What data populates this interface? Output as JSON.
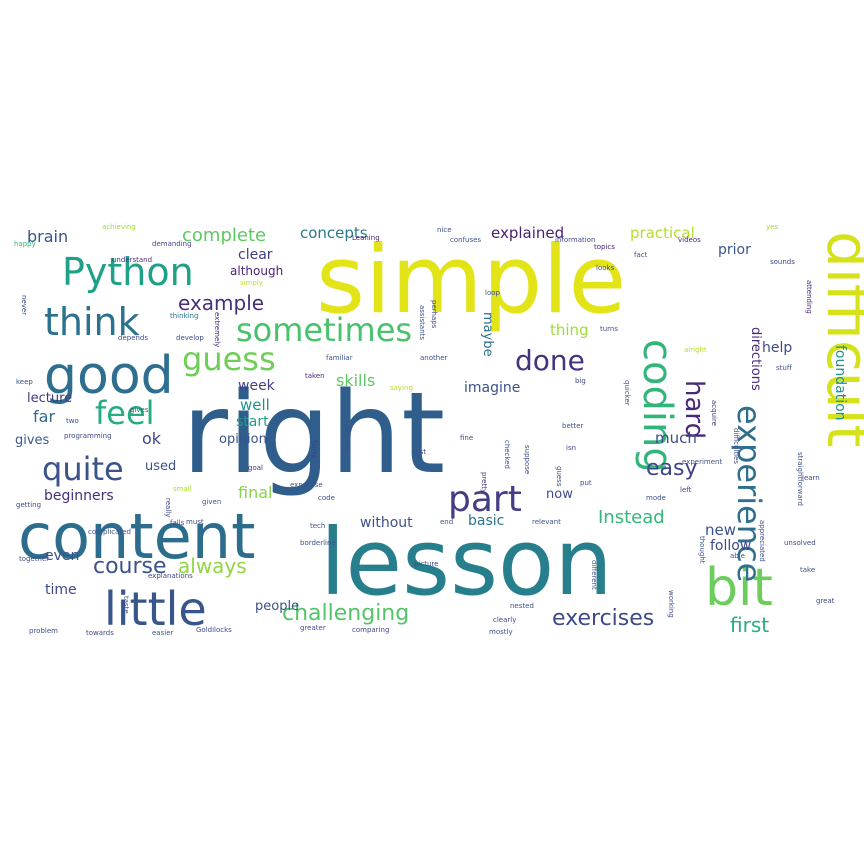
{
  "words": [
    {
      "text": "right",
      "color": "#2f5e8d"
    },
    {
      "text": "simple",
      "color": "#e2e418"
    },
    {
      "text": "lesson",
      "color": "#277f8e"
    },
    {
      "text": "content",
      "color": "#2c6d8e"
    },
    {
      "text": "difficult",
      "color": "#d5e21a"
    },
    {
      "text": "good",
      "color": "#2e6e8e"
    },
    {
      "text": "bit",
      "color": "#6ccd5a"
    },
    {
      "text": "little",
      "color": "#39568c"
    },
    {
      "text": "coding",
      "color": "#31b57b"
    },
    {
      "text": "part",
      "color": "#433e85"
    },
    {
      "text": "Python",
      "color": "#1fa187"
    },
    {
      "text": "think",
      "color": "#2c728e"
    },
    {
      "text": "quite",
      "color": "#3b528b"
    },
    {
      "text": "experience",
      "color": "#2e6f8e"
    },
    {
      "text": "sometimes",
      "color": "#4ac16d"
    },
    {
      "text": "challenging",
      "color": "#52c569"
    },
    {
      "text": "exercises",
      "color": "#3e4a89"
    },
    {
      "text": "guess",
      "color": "#6ece58"
    },
    {
      "text": "feel",
      "color": "#25ac82"
    },
    {
      "text": "done",
      "color": "#46327e"
    },
    {
      "text": "hard",
      "color": "#482878"
    },
    {
      "text": "course",
      "color": "#3b528b"
    },
    {
      "text": "always",
      "color": "#90d743"
    },
    {
      "text": "first",
      "color": "#26ad81"
    },
    {
      "text": "easy",
      "color": "#414487"
    },
    {
      "text": "example",
      "color": "#472d7b"
    },
    {
      "text": "Instead",
      "color": "#35b779"
    },
    {
      "text": "complete",
      "color": "#5ec962"
    },
    {
      "text": "brain",
      "color": "#3b528b"
    },
    {
      "text": "concepts",
      "color": "#2a788e"
    },
    {
      "text": "explained",
      "color": "#482173"
    },
    {
      "text": "practical",
      "color": "#b5de2b"
    },
    {
      "text": "clear",
      "color": "#433e85"
    },
    {
      "text": "although",
      "color": "#482475"
    },
    {
      "text": "prior",
      "color": "#39568c"
    },
    {
      "text": "skills",
      "color": "#5ec962"
    },
    {
      "text": "final",
      "color": "#84d44b"
    },
    {
      "text": "foundation",
      "color": "#21918c"
    },
    {
      "text": "directions",
      "color": "#482878"
    },
    {
      "text": "help",
      "color": "#3e4a89"
    },
    {
      "text": "thing",
      "color": "#a0da39"
    },
    {
      "text": "maybe",
      "color": "#2d708e"
    },
    {
      "text": "imagine",
      "color": "#3b528b"
    },
    {
      "text": "week",
      "color": "#433e85"
    },
    {
      "text": "well",
      "color": "#20928c"
    },
    {
      "text": "start",
      "color": "#1f9e89"
    },
    {
      "text": "opinion",
      "color": "#3b528b"
    },
    {
      "text": "much",
      "color": "#3e4a89"
    },
    {
      "text": "ok",
      "color": "#414487"
    },
    {
      "text": "lecture",
      "color": "#443983"
    },
    {
      "text": "far",
      "color": "#31688e"
    },
    {
      "text": "gives",
      "color": "#38598c"
    },
    {
      "text": "used",
      "color": "#3b528b"
    },
    {
      "text": "beginners",
      "color": "#472d7b"
    },
    {
      "text": "basic",
      "color": "#2c728e"
    },
    {
      "text": "without",
      "color": "#3b528b"
    },
    {
      "text": "now",
      "color": "#3e4a89"
    },
    {
      "text": "new",
      "color": "#3b528b"
    },
    {
      "text": "follow",
      "color": "#3e4a89"
    },
    {
      "text": "even",
      "color": "#3b528b"
    },
    {
      "text": "time",
      "color": "#3e4a89"
    },
    {
      "text": "people",
      "color": "#3b528b"
    },
    {
      "text": "achieving",
      "color": "#9bd93c"
    },
    {
      "text": "happy",
      "color": "#35b779"
    },
    {
      "text": "demanding",
      "color": "#414487"
    },
    {
      "text": "understand",
      "color": "#472d7b"
    },
    {
      "text": "simply",
      "color": "#bddf26"
    },
    {
      "text": "extremely",
      "color": "#482677"
    },
    {
      "text": "thinking",
      "color": "#2a788e"
    },
    {
      "text": "develop",
      "color": "#3e4a89"
    },
    {
      "text": "depends",
      "color": "#3b528b"
    },
    {
      "text": "familiar",
      "color": "#3b528b"
    },
    {
      "text": "taken",
      "color": "#472d7b"
    },
    {
      "text": "saying",
      "color": "#b8de29"
    },
    {
      "text": "sufficient",
      "color": "#3b528b"
    },
    {
      "text": "fairly",
      "color": "#433e85"
    },
    {
      "text": "another",
      "color": "#3b528b"
    },
    {
      "text": "Leaning",
      "color": "#482475"
    },
    {
      "text": "loop",
      "color": "#3b528b"
    },
    {
      "text": "nice",
      "color": "#3e4a89"
    },
    {
      "text": "confuses",
      "color": "#3b528b"
    },
    {
      "text": "information",
      "color": "#3e4a89"
    },
    {
      "text": "topics",
      "color": "#482475"
    },
    {
      "text": "fact",
      "color": "#3b528b"
    },
    {
      "text": "videos",
      "color": "#472d7b"
    },
    {
      "text": "looks",
      "color": "#3e4a89"
    },
    {
      "text": "turns",
      "color": "#3b528b"
    },
    {
      "text": "sounds",
      "color": "#3e4a89"
    },
    {
      "text": "yes",
      "color": "#a8db34"
    },
    {
      "text": "attending",
      "color": "#482475"
    },
    {
      "text": "assistants",
      "color": "#3b528b"
    },
    {
      "text": "perhaps",
      "color": "#3e4a89"
    },
    {
      "text": "quicker",
      "color": "#3b528b"
    },
    {
      "text": "acquire",
      "color": "#472d7b"
    },
    {
      "text": "difficulties",
      "color": "#3e4a89"
    },
    {
      "text": "alright",
      "color": "#b5de2b"
    },
    {
      "text": "stuff",
      "color": "#3b528b"
    },
    {
      "text": "big",
      "color": "#3e4a89"
    },
    {
      "text": "checked",
      "color": "#3b528b"
    },
    {
      "text": "suppose",
      "color": "#3e4a89"
    },
    {
      "text": "better",
      "color": "#3b528b"
    },
    {
      "text": "pretty",
      "color": "#472d7b"
    },
    {
      "text": "isn",
      "color": "#3e4a89"
    },
    {
      "text": "fast",
      "color": "#3b528b"
    },
    {
      "text": "fine",
      "color": "#3e4a89"
    },
    {
      "text": "put",
      "color": "#3b528b"
    },
    {
      "text": "guess",
      "color": "#3e4a89"
    },
    {
      "text": "relevant",
      "color": "#3b528b"
    },
    {
      "text": "getting",
      "color": "#3e4a89"
    },
    {
      "text": "goal",
      "color": "#472d7b"
    },
    {
      "text": "expertise",
      "color": "#3b528b"
    },
    {
      "text": "code",
      "color": "#3e4a89"
    },
    {
      "text": "mode",
      "color": "#3b528b"
    },
    {
      "text": "left",
      "color": "#3e4a89"
    },
    {
      "text": "tech",
      "color": "#3b528b"
    },
    {
      "text": "small",
      "color": "#a8db34"
    },
    {
      "text": "really",
      "color": "#3e4a89"
    },
    {
      "text": "experiment",
      "color": "#3b528b"
    },
    {
      "text": "programming",
      "color": "#3e4a89"
    },
    {
      "text": "gives",
      "color": "#3b528b"
    },
    {
      "text": "two",
      "color": "#3e4a89"
    },
    {
      "text": "keep",
      "color": "#3b528b"
    },
    {
      "text": "learn",
      "color": "#3e4a89"
    },
    {
      "text": "end",
      "color": "#3b528b"
    },
    {
      "text": "never",
      "color": "#3e4a89"
    },
    {
      "text": "borderline",
      "color": "#3b528b"
    },
    {
      "text": "together",
      "color": "#3e4a89"
    },
    {
      "text": "given",
      "color": "#3b528b"
    },
    {
      "text": "must",
      "color": "#3e4a89"
    },
    {
      "text": "complicated",
      "color": "#3b528b"
    },
    {
      "text": "explanations",
      "color": "#3e4a89"
    },
    {
      "text": "taste",
      "color": "#3b528b"
    },
    {
      "text": "picture",
      "color": "#3e4a89"
    },
    {
      "text": "different",
      "color": "#3b528b"
    },
    {
      "text": "working",
      "color": "#3e4a89"
    },
    {
      "text": "able",
      "color": "#3b528b"
    },
    {
      "text": "appreciated",
      "color": "#3e4a89"
    },
    {
      "text": "straightforward",
      "color": "#3b528b"
    },
    {
      "text": "unsolved",
      "color": "#3e4a89"
    },
    {
      "text": "take",
      "color": "#3b528b"
    },
    {
      "text": "great",
      "color": "#3e4a89"
    },
    {
      "text": "nested",
      "color": "#3b528b"
    },
    {
      "text": "clearly",
      "color": "#3e4a89"
    },
    {
      "text": "mostly",
      "color": "#3b528b"
    },
    {
      "text": "comparing",
      "color": "#3e4a89"
    },
    {
      "text": "greater",
      "color": "#3b528b"
    },
    {
      "text": "Goldilocks",
      "color": "#3e4a89"
    },
    {
      "text": "easier",
      "color": "#3b528b"
    },
    {
      "text": "towards",
      "color": "#3e4a89"
    },
    {
      "text": "problem",
      "color": "#3b528b"
    },
    {
      "text": "falls",
      "color": "#3e4a89"
    },
    {
      "text": "thought",
      "color": "#3b528b"
    }
  ]
}
